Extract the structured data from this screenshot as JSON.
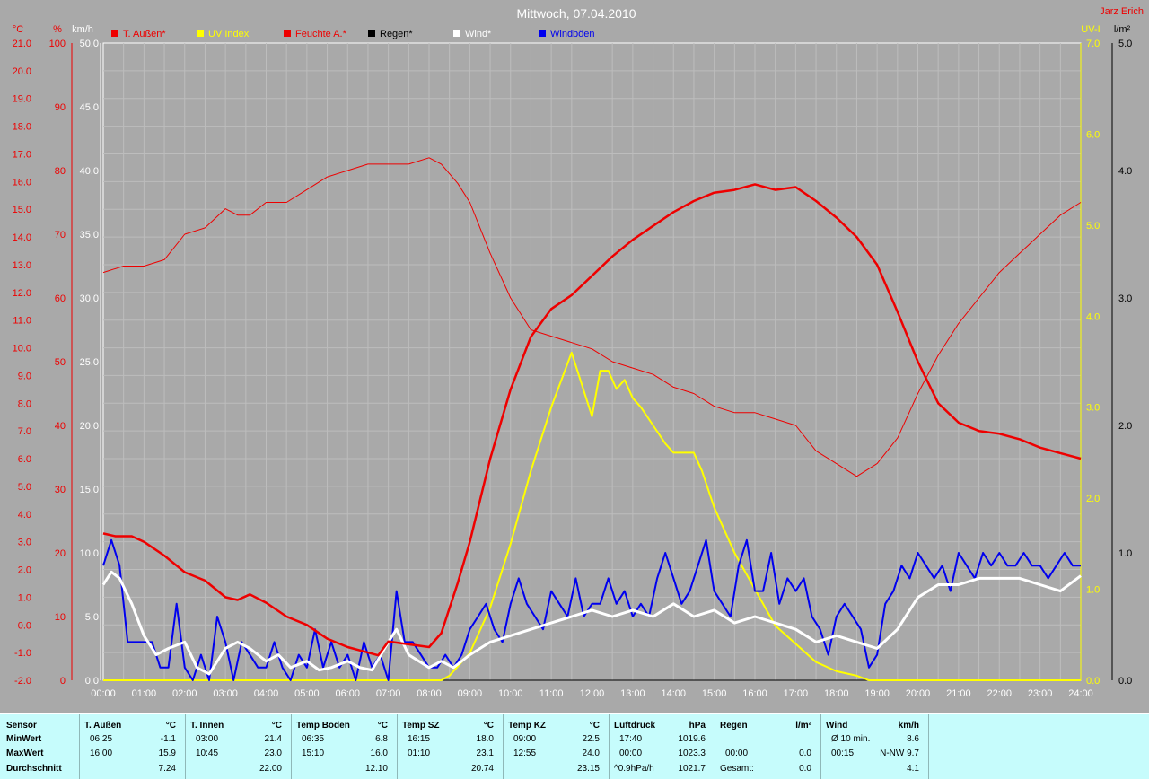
{
  "title": "Mittwoch, 07.04.2010",
  "author": "Jarz Erich",
  "colors": {
    "background": "#a9a9a9",
    "temp": "#ee0000",
    "uv": "#ffff00",
    "humidity": "#ee0000",
    "rain": "#000000",
    "wind": "#ffffff",
    "gust": "#0000ee",
    "stats_bg": "#c6fcfc"
  },
  "chart_data": {
    "type": "line",
    "title": "Mittwoch, 07.04.2010",
    "x_unit": "time of day",
    "xlim": [
      "00:00",
      "24:00"
    ],
    "x_ticks": [
      "00:00",
      "01:00",
      "02:00",
      "03:00",
      "04:00",
      "05:00",
      "06:00",
      "07:00",
      "08:00",
      "09:00",
      "10:00",
      "11:00",
      "12:00",
      "13:00",
      "14:00",
      "15:00",
      "16:00",
      "17:00",
      "18:00",
      "19:00",
      "20:00",
      "21:00",
      "22:00",
      "23:00",
      "24:00"
    ],
    "axes": {
      "temp_c": {
        "label": "°C",
        "ylim": [
          -2,
          21
        ],
        "ticks": [
          "-2.0",
          "-1.0",
          "0.0",
          "1.0",
          "2.0",
          "3.0",
          "4.0",
          "5.0",
          "6.0",
          "7.0",
          "8.0",
          "9.0",
          "10.0",
          "11.0",
          "12.0",
          "13.0",
          "14.0",
          "15.0",
          "16.0",
          "17.0",
          "18.0",
          "19.0",
          "20.0",
          "21.0"
        ]
      },
      "humidity_pct": {
        "label": "%",
        "ylim": [
          0,
          100
        ],
        "ticks": [
          "0",
          "10",
          "20",
          "30",
          "40",
          "50",
          "60",
          "70",
          "80",
          "90",
          "100"
        ]
      },
      "wind_kmh": {
        "label": "km/h",
        "ylim": [
          0,
          50
        ],
        "ticks": [
          "0.0",
          "5.0",
          "10.0",
          "15.0",
          "20.0",
          "25.0",
          "30.0",
          "35.0",
          "40.0",
          "45.0",
          "50.0"
        ]
      },
      "uv_index": {
        "label": "UV-I",
        "ylim": [
          0,
          7
        ],
        "ticks": [
          "0.0",
          "1.0",
          "2.0",
          "3.0",
          "4.0",
          "5.0",
          "6.0",
          "7.0"
        ]
      },
      "rain_lm2": {
        "label": "l/m²",
        "ylim": [
          0,
          5
        ],
        "ticks": [
          "0.0",
          "1.0",
          "2.0",
          "3.0",
          "4.0",
          "5.0"
        ]
      }
    },
    "legend": [
      "T. Außen*",
      "UV Index",
      "Feuchte A.*",
      "Regen*",
      "Wind*",
      "Windböen"
    ],
    "legend_position": "top",
    "grid": true,
    "series": [
      {
        "name": "T. Außen*",
        "axis": "temp_c",
        "x": [
          0,
          0.3,
          0.7,
          1.0,
          1.5,
          2.0,
          2.5,
          3.0,
          3.3,
          3.6,
          4.0,
          4.5,
          5.0,
          5.5,
          6.0,
          6.5,
          6.75,
          7.0,
          7.5,
          8.0,
          8.3,
          8.7,
          9.0,
          9.5,
          10.0,
          10.5,
          11.0,
          11.5,
          12.0,
          12.5,
          13.0,
          13.5,
          14.0,
          14.5,
          15.0,
          15.5,
          16.0,
          16.5,
          17.0,
          17.5,
          18.0,
          18.5,
          19.0,
          19.5,
          20.0,
          20.5,
          21.0,
          21.5,
          22.0,
          22.5,
          23.0,
          23.5,
          24.0
        ],
        "y": [
          3.3,
          3.2,
          3.2,
          3.0,
          2.5,
          1.9,
          1.6,
          1.0,
          0.9,
          1.1,
          0.8,
          0.3,
          0.0,
          -0.5,
          -0.8,
          -1.0,
          -1.1,
          -0.6,
          -0.7,
          -0.8,
          -0.3,
          1.5,
          3.0,
          6.0,
          8.5,
          10.4,
          11.4,
          11.9,
          12.6,
          13.3,
          13.9,
          14.4,
          14.9,
          15.3,
          15.6,
          15.7,
          15.9,
          15.7,
          15.8,
          15.3,
          14.7,
          14.0,
          13.0,
          11.3,
          9.5,
          8.0,
          7.3,
          7.0,
          6.9,
          6.7,
          6.4,
          6.2,
          6.0
        ]
      },
      {
        "name": "UV Index",
        "axis": "uv_index",
        "x": [
          0,
          8.3,
          8.5,
          9.0,
          9.5,
          10.0,
          10.5,
          11.0,
          11.5,
          12.0,
          12.2,
          12.4,
          12.6,
          12.8,
          13.0,
          13.2,
          13.5,
          13.8,
          14.0,
          14.5,
          14.7,
          15.0,
          15.5,
          16.0,
          16.5,
          17.0,
          17.5,
          18.0,
          18.5,
          18.8,
          19.0,
          24.0
        ],
        "y": [
          0,
          0,
          0.05,
          0.3,
          0.8,
          1.5,
          2.3,
          3.0,
          3.6,
          2.9,
          3.4,
          3.4,
          3.2,
          3.3,
          3.1,
          3.0,
          2.8,
          2.6,
          2.5,
          2.5,
          2.3,
          1.9,
          1.4,
          1.0,
          0.6,
          0.4,
          0.2,
          0.1,
          0.05,
          0,
          0,
          0
        ]
      },
      {
        "name": "Feuchte A.*",
        "axis": "humidity_pct",
        "x": [
          0,
          0.5,
          1.0,
          1.5,
          2.0,
          2.5,
          3.0,
          3.3,
          3.6,
          4.0,
          4.5,
          5.0,
          5.5,
          6.0,
          6.5,
          7.0,
          7.5,
          8.0,
          8.3,
          8.7,
          9.0,
          9.5,
          10.0,
          10.5,
          11.0,
          11.5,
          12.0,
          12.5,
          13.0,
          13.5,
          14.0,
          14.5,
          15.0,
          15.5,
          16.0,
          16.5,
          17.0,
          17.5,
          18.0,
          18.5,
          19.0,
          19.5,
          20.0,
          20.5,
          21.0,
          21.5,
          22.0,
          22.5,
          23.0,
          23.5,
          24.0
        ],
        "y": [
          64,
          65,
          65,
          66,
          70,
          71,
          74,
          73,
          73,
          75,
          75,
          77,
          79,
          80,
          81,
          81,
          81,
          82,
          81,
          78,
          75,
          67,
          60,
          55,
          54,
          53,
          52,
          50,
          49,
          48,
          46,
          45,
          43,
          42,
          42,
          41,
          40,
          36,
          34,
          32,
          34,
          38,
          45,
          51,
          56,
          60,
          64,
          67,
          70,
          73,
          75
        ]
      },
      {
        "name": "Regen*",
        "axis": "rain_lm2",
        "x": [
          0,
          24
        ],
        "y": [
          0,
          0
        ]
      },
      {
        "name": "Wind*",
        "axis": "wind_kmh",
        "x": [
          0,
          0.2,
          0.4,
          0.7,
          1.0,
          1.3,
          1.6,
          2.0,
          2.3,
          2.6,
          3.0,
          3.3,
          3.6,
          4.0,
          4.3,
          4.6,
          5.0,
          5.3,
          5.6,
          6.0,
          6.3,
          6.6,
          7.0,
          7.2,
          7.5,
          8.0,
          8.3,
          8.6,
          9.0,
          9.5,
          10.0,
          10.5,
          11.0,
          11.5,
          12.0,
          12.5,
          13.0,
          13.5,
          14.0,
          14.5,
          15.0,
          15.5,
          16.0,
          16.5,
          17.0,
          17.5,
          18.0,
          18.5,
          19.0,
          19.5,
          20.0,
          20.5,
          21.0,
          21.5,
          22.0,
          22.5,
          23.0,
          23.5,
          24.0
        ],
        "y": [
          7.5,
          8.5,
          8.0,
          6.0,
          3.5,
          2.0,
          2.5,
          3.0,
          1.0,
          0.5,
          2.5,
          3.0,
          2.5,
          1.5,
          2.0,
          1.0,
          1.5,
          0.8,
          1.0,
          1.5,
          1.0,
          0.8,
          3.0,
          4.0,
          2.0,
          1.0,
          1.5,
          1.0,
          2.0,
          3.0,
          3.5,
          4.0,
          4.5,
          5.0,
          5.5,
          5.0,
          5.5,
          5.0,
          6.0,
          5.0,
          5.5,
          4.5,
          5.0,
          4.5,
          4.0,
          3.0,
          3.5,
          3.0,
          2.5,
          4.0,
          6.5,
          7.5,
          7.5,
          8.0,
          8.0,
          8.0,
          7.5,
          7.0,
          8.2
        ]
      },
      {
        "name": "Windböen",
        "axis": "wind_kmh",
        "x": [
          0,
          0.2,
          0.4,
          0.6,
          0.8,
          1.0,
          1.2,
          1.4,
          1.6,
          1.8,
          2.0,
          2.2,
          2.4,
          2.6,
          2.8,
          3.0,
          3.2,
          3.4,
          3.6,
          3.8,
          4.0,
          4.2,
          4.4,
          4.6,
          4.8,
          5.0,
          5.2,
          5.4,
          5.6,
          5.8,
          6.0,
          6.2,
          6.4,
          6.6,
          6.8,
          7.0,
          7.2,
          7.4,
          7.6,
          7.8,
          8.0,
          8.2,
          8.4,
          8.6,
          8.8,
          9.0,
          9.2,
          9.4,
          9.6,
          9.8,
          10.0,
          10.2,
          10.4,
          10.6,
          10.8,
          11.0,
          11.2,
          11.4,
          11.6,
          11.8,
          12.0,
          12.2,
          12.4,
          12.6,
          12.8,
          13.0,
          13.2,
          13.4,
          13.6,
          13.8,
          14.0,
          14.2,
          14.4,
          14.6,
          14.8,
          15.0,
          15.2,
          15.4,
          15.6,
          15.8,
          16.0,
          16.2,
          16.4,
          16.6,
          16.8,
          17.0,
          17.2,
          17.4,
          17.6,
          17.8,
          18.0,
          18.2,
          18.4,
          18.6,
          18.8,
          19.0,
          19.2,
          19.4,
          19.6,
          19.8,
          20.0,
          20.2,
          20.4,
          20.6,
          20.8,
          21.0,
          21.2,
          21.4,
          21.6,
          21.8,
          22.0,
          22.2,
          22.4,
          22.6,
          22.8,
          23.0,
          23.2,
          23.4,
          23.6,
          23.8,
          24.0
        ],
        "y": [
          9,
          11,
          9,
          3,
          3,
          3,
          3,
          1,
          1,
          6,
          1,
          0,
          2,
          0,
          5,
          3,
          0,
          3,
          2,
          1,
          1,
          3,
          1,
          0,
          2,
          1,
          4,
          1,
          3,
          1,
          2,
          0,
          3,
          1,
          2,
          0,
          7,
          3,
          3,
          2,
          1,
          1,
          2,
          1,
          2,
          4,
          5,
          6,
          4,
          3,
          6,
          8,
          6,
          5,
          4,
          7,
          6,
          5,
          8,
          5,
          6,
          6,
          8,
          6,
          7,
          5,
          6,
          5,
          8,
          10,
          8,
          6,
          7,
          9,
          11,
          7,
          6,
          5,
          9,
          11,
          7,
          7,
          10,
          6,
          8,
          7,
          8,
          5,
          4,
          2,
          5,
          6,
          5,
          4,
          1,
          2,
          6,
          7,
          9,
          8,
          10,
          9,
          8,
          9,
          7,
          10,
          9,
          8,
          10,
          9,
          10,
          9,
          9,
          10,
          9,
          9,
          8,
          9,
          10,
          9,
          9
        ]
      }
    ]
  },
  "stats": {
    "row_labels": [
      "Sensor",
      "MinWert",
      "MaxWert",
      "Durchschnitt"
    ],
    "columns": [
      {
        "name": "T. Außen",
        "unit": "°C",
        "min_time": "06:25",
        "min_val": "-1.1",
        "max_time": "16:00",
        "max_val": "15.9",
        "avg_label": "",
        "avg": "7.24"
      },
      {
        "name": "T. Innen",
        "unit": "°C",
        "min_time": "03:00",
        "min_val": "21.4",
        "max_time": "10:45",
        "max_val": "23.0",
        "avg_label": "",
        "avg": "22.00"
      },
      {
        "name": "Temp Boden",
        "unit": "°C",
        "min_time": "06:35",
        "min_val": "6.8",
        "max_time": "15:10",
        "max_val": "16.0",
        "avg_label": "",
        "avg": "12.10"
      },
      {
        "name": "Temp SZ",
        "unit": "°C",
        "min_time": "16:15",
        "min_val": "18.0",
        "max_time": "01:10",
        "max_val": "23.1",
        "avg_label": "",
        "avg": "20.74"
      },
      {
        "name": "Temp KZ",
        "unit": "°C",
        "min_time": "09:00",
        "min_val": "22.5",
        "max_time": "12:55",
        "max_val": "24.0",
        "avg_label": "",
        "avg": "23.15"
      },
      {
        "name": "Luftdruck",
        "unit": "hPa",
        "min_time": "17:40",
        "min_val": "1019.6",
        "max_time": "00:00",
        "max_val": "1023.3",
        "avg_label": "^0.9hPa/h",
        "avg": "1021.7"
      },
      {
        "name": "Regen",
        "unit": "l/m²",
        "min_time": "",
        "min_val": "",
        "max_time": "00:00",
        "max_val": "0.0",
        "avg_label": "Gesamt:",
        "avg": "0.0"
      },
      {
        "name": "Wind",
        "unit": "km/h",
        "min_time": "Ø 10 min.",
        "min_val": "8.6",
        "max_time": "00:15",
        "max_val": "N-NW 9.7",
        "avg_label": "",
        "avg": "4.1"
      }
    ]
  }
}
